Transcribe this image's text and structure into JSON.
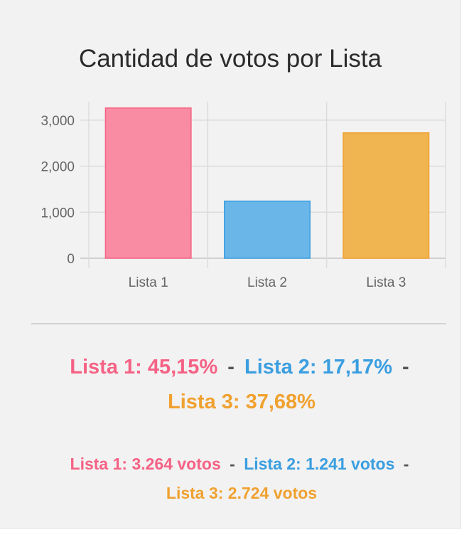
{
  "chart_data": {
    "type": "bar",
    "title": "Cantidad de votos por Lista",
    "categories": [
      "Lista 1",
      "Lista 2",
      "Lista 3"
    ],
    "values": [
      3264,
      1241,
      2724
    ],
    "colors": [
      "#f98ca3",
      "#6ab6e9",
      "#f0b450"
    ],
    "border_colors": [
      "#f56285",
      "#3a9ee0",
      "#f0a12f"
    ],
    "y_ticks": [
      "0",
      "1,000",
      "2,000",
      "3,000"
    ],
    "y_tick_values": [
      0,
      1000,
      2000,
      3000
    ],
    "ylim": [
      0,
      3400
    ],
    "grid": true
  },
  "summary": {
    "percentages": [
      {
        "text": "Lista 1: 45,15%",
        "color": "#f56285"
      },
      {
        "text": "Lista 2: 17,17%",
        "color": "#3a9ee0"
      },
      {
        "text": "Lista 3: 37,68%",
        "color": "#f0a12f"
      }
    ],
    "votes": [
      {
        "text": "Lista 1: 3.264 votos",
        "color": "#f56285"
      },
      {
        "text": "Lista 2: 1.241 votos",
        "color": "#3a9ee0"
      },
      {
        "text": "Lista 3: 2.724 votos",
        "color": "#f0a12f"
      }
    ],
    "separator": "-"
  }
}
